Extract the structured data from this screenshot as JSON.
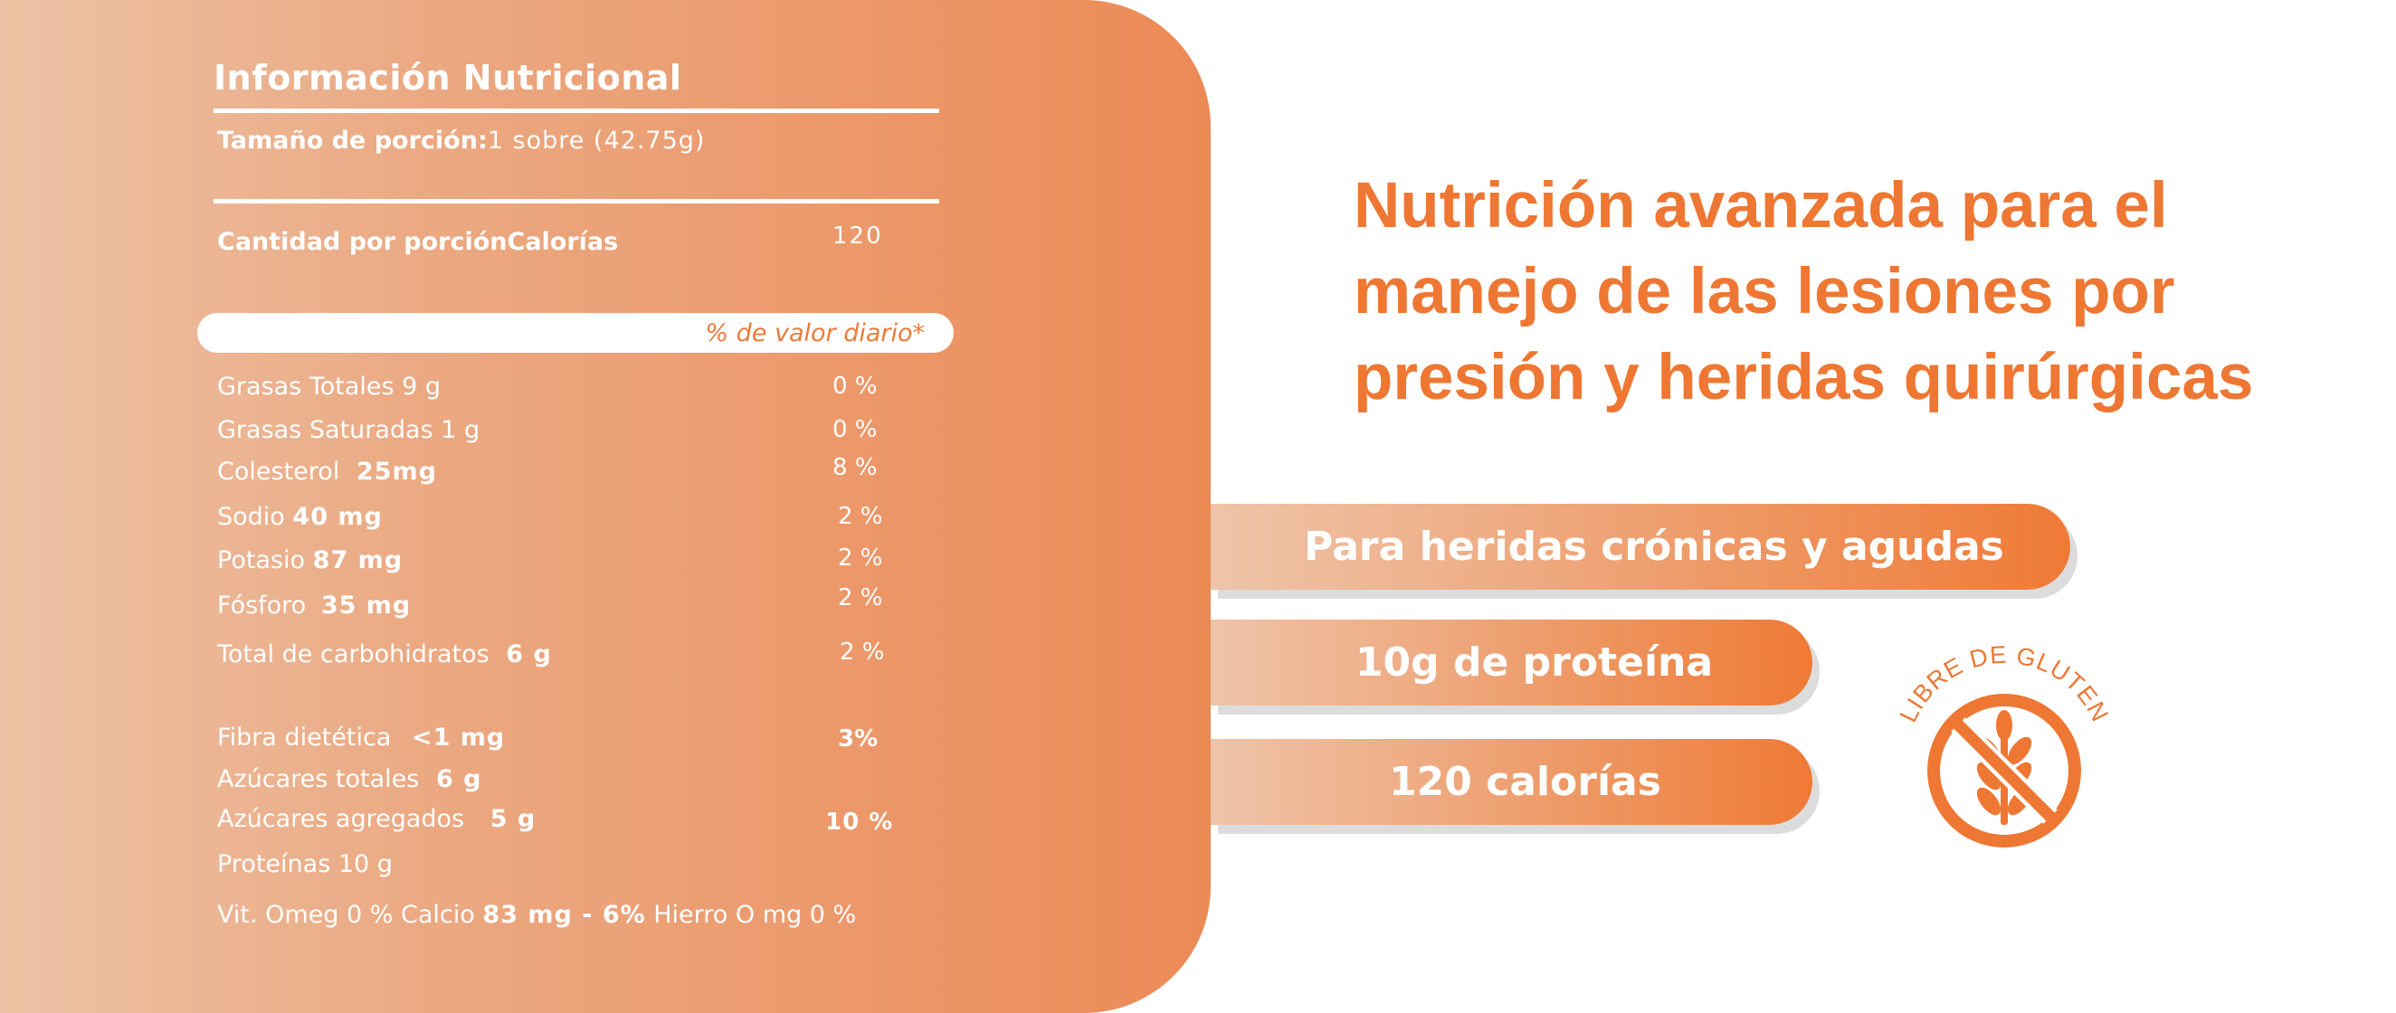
{
  "nutrition": {
    "title": "Información Nutricional",
    "serving_label": "Tamaño de porción:",
    "serving_value": "1 sobre (42.75g)",
    "amount_label": "Cantidad por porción",
    "calories_label": "Calorías",
    "calories_value": "120",
    "daily_value_header": "% de valor diario*",
    "rows": [
      {
        "label": "Grasas Totales 9 g",
        "amount": "",
        "dv": "0 %"
      },
      {
        "label": "Grasas Saturadas 1 g",
        "amount": "",
        "dv": "0 %"
      },
      {
        "label": "Colesterol",
        "amount": "25mg",
        "dv": "8 %"
      },
      {
        "label": "Sodio",
        "amount": "40 mg",
        "dv": "2 %"
      },
      {
        "label": "Potasio",
        "amount": "87 mg",
        "dv": "2 %"
      },
      {
        "label": "Fósforo",
        "amount": "35 mg",
        "dv": "2 %"
      },
      {
        "label": "Total de carbohidratos",
        "amount": "6 g",
        "dv": "2 %"
      },
      {
        "label": "Fibra dietética",
        "amount": "<1 mg",
        "dv": "3%"
      },
      {
        "label": "Azúcares totales",
        "amount": "6 g",
        "dv": ""
      },
      {
        "label": "Azúcares agregados",
        "amount": "5 g",
        "dv": "10 %"
      },
      {
        "label": "Proteínas 10 g",
        "amount": "",
        "dv": ""
      }
    ],
    "footer": {
      "vit_label": "Vit.  Omeg  0 %  Calcio",
      "calcio_value": "83 mg  - 6%",
      "hierro_label": "Hierro O mg 0 %"
    }
  },
  "headline": {
    "line1": "Nutrición avanzada para el",
    "line2": "manejo de las lesiones por",
    "line3": "presión y heridas quirúrgicas"
  },
  "pills": [
    {
      "label": "Para heridas crónicas y agudas"
    },
    {
      "label": "10g de proteína"
    },
    {
      "label": "120 calorías"
    }
  ],
  "badge": {
    "text": "LIBRE DE GLUTEN",
    "icon": "wheat-crossed-icon"
  },
  "colors": {
    "accent": "#EE7733",
    "panel_light": "#ECC2A6",
    "panel_dark": "#EC8A56",
    "text_on_panel": "#FFFFFF"
  }
}
